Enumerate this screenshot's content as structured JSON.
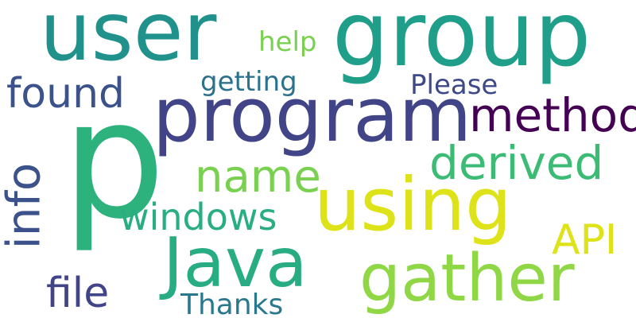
{
  "words": {
    "user": {
      "text": "user",
      "color": "#21918c"
    },
    "group": {
      "text": "group",
      "color": "#1f9e89"
    },
    "help": {
      "text": "help",
      "color": "#7ad151"
    },
    "found": {
      "text": "found",
      "color": "#3b528b"
    },
    "getting": {
      "text": "getting",
      "color": "#2c728e"
    },
    "please": {
      "text": "Please",
      "color": "#3e4989"
    },
    "program": {
      "text": "program",
      "color": "#414487"
    },
    "method": {
      "text": "method",
      "color": "#440154"
    },
    "p": {
      "text": "p",
      "color": "#2db27d"
    },
    "derived": {
      "text": "derived",
      "color": "#3cbb75"
    },
    "name": {
      "text": "name",
      "color": "#7ad151"
    },
    "info": {
      "text": "info",
      "color": "#3b528b"
    },
    "using": {
      "text": "using",
      "color": "#dde318"
    },
    "windows": {
      "text": "windows",
      "color": "#28ae80"
    },
    "api": {
      "text": "API",
      "color": "#dde318"
    },
    "java": {
      "text": "Java",
      "color": "#27ad81"
    },
    "gather": {
      "text": "gather",
      "color": "#8fd744"
    },
    "file": {
      "text": "file",
      "color": "#414487"
    },
    "thanks": {
      "text": "Thanks",
      "color": "#2a788e"
    }
  }
}
